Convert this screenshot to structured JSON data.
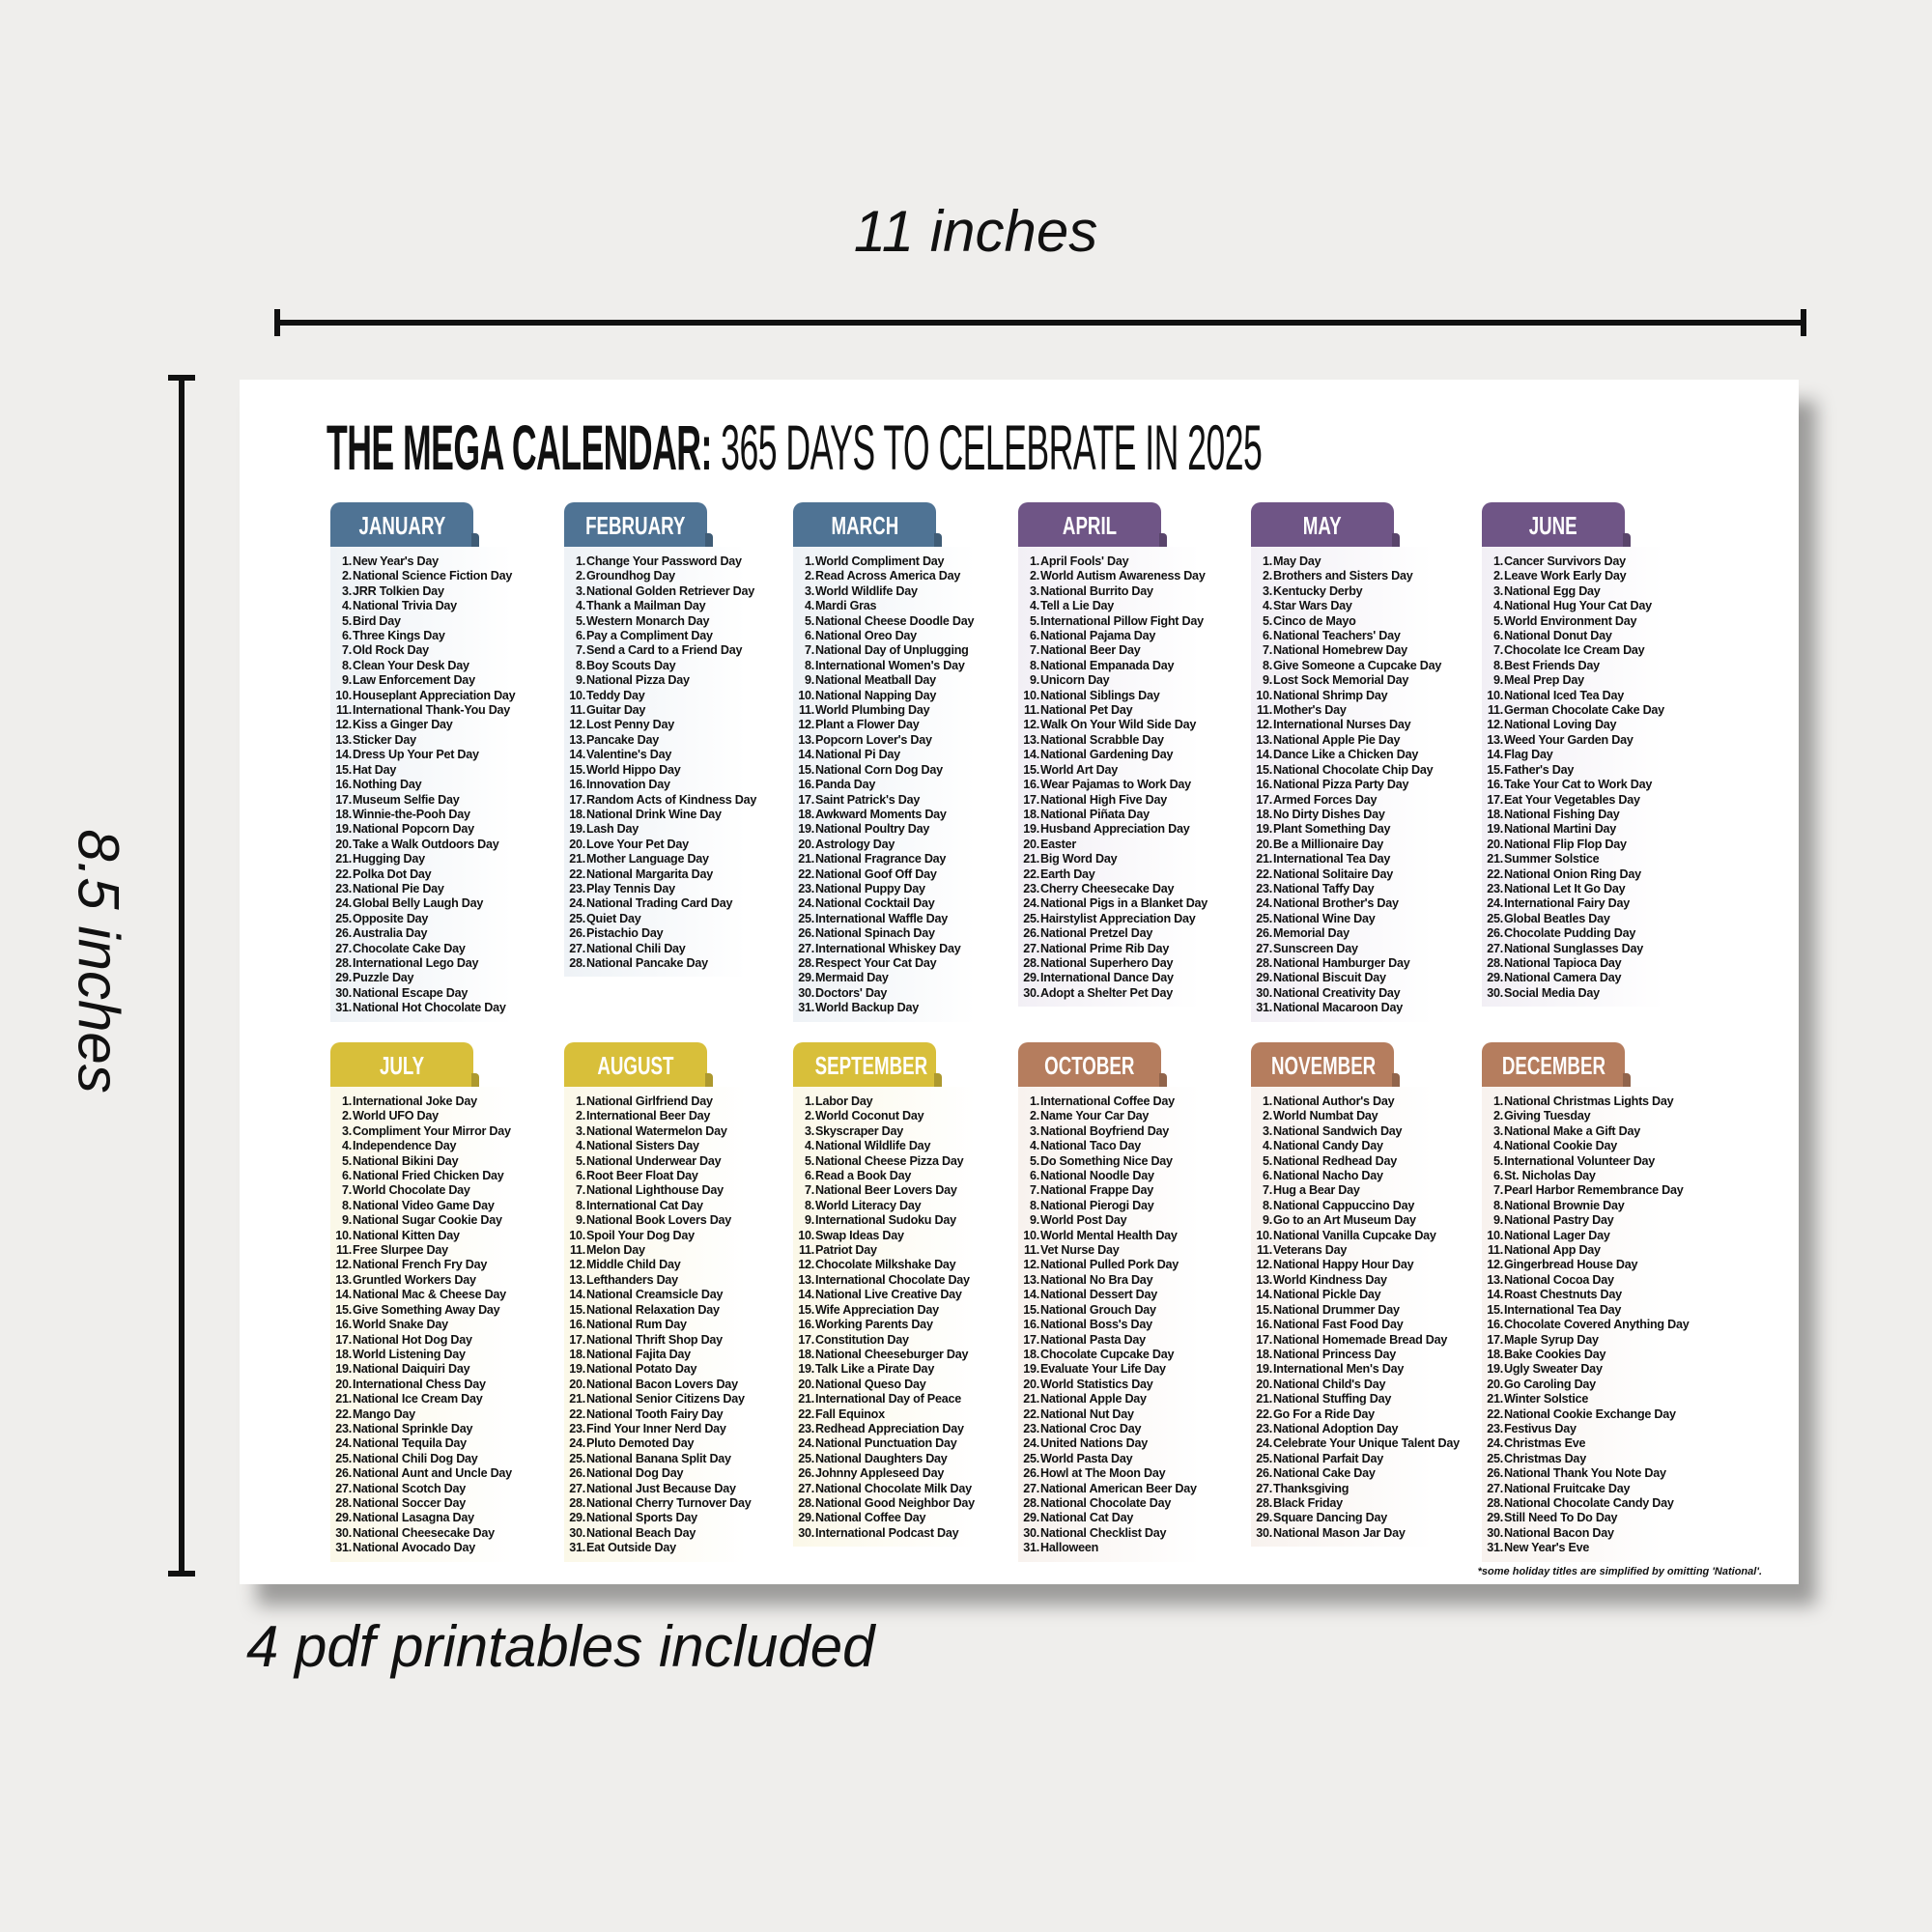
{
  "labels": {
    "width": "11 inches",
    "height": "8.5 inches",
    "printables": "4 pdf printables included"
  },
  "calendar": {
    "title_bold": "THE MEGA CALENDAR:",
    "title_rest": " 365 DAYS TO CELEBRATE IN 2025",
    "footnote": "*some holiday titles are simplified by omitting 'National'.",
    "months": [
      {
        "name": "JANUARY",
        "color": "#4f7394",
        "tint": "#eef2f6",
        "days": [
          "New Year's Day",
          "National Science Fiction Day",
          "JRR Tolkien Day",
          "National Trivia Day",
          "Bird Day",
          "Three Kings Day",
          "Old Rock Day",
          "Clean Your Desk Day",
          "Law Enforcement Day",
          "Houseplant Appreciation Day",
          "International Thank-You Day",
          "Kiss a Ginger Day",
          "Sticker Day",
          "Dress Up Your Pet Day",
          "Hat Day",
          "Nothing Day",
          "Museum Selfie Day",
          "Winnie-the-Pooh Day",
          "National Popcorn Day",
          "Take a Walk Outdoors Day",
          "Hugging Day",
          "Polka Dot Day",
          "National Pie Day",
          "Global Belly Laugh Day",
          "Opposite Day",
          "Australia Day",
          "Chocolate Cake Day",
          "International Lego Day",
          "Puzzle Day",
          "National Escape Day",
          "National Hot Chocolate Day"
        ]
      },
      {
        "name": "FEBRUARY",
        "color": "#4f7394",
        "tint": "#eef2f6",
        "days": [
          "Change Your Password Day",
          "Groundhog Day",
          "National Golden Retriever Day",
          "Thank a Mailman Day",
          "Western Monarch Day",
          "Pay a Compliment Day",
          "Send a Card to a Friend Day",
          "Boy Scouts Day",
          "National Pizza Day",
          "Teddy Day",
          "Guitar Day",
          "Lost Penny Day",
          "Pancake Day",
          "Valentine's Day",
          "World Hippo Day",
          "Innovation Day",
          "Random Acts of Kindness Day",
          "National Drink Wine Day",
          "Lash Day",
          "Love Your Pet Day",
          "Mother Language Day",
          "National Margarita Day",
          "Play Tennis Day",
          "National Trading Card Day",
          "Quiet Day",
          "Pistachio Day",
          "National Chili Day",
          "National Pancake Day"
        ]
      },
      {
        "name": "MARCH",
        "color": "#4f7394",
        "tint": "#eef2f6",
        "days": [
          "World Compliment Day",
          "Read Across America Day",
          "World Wildlife Day",
          "Mardi Gras",
          "National Cheese Doodle Day",
          "National Oreo Day",
          "National Day of Unplugging",
          "International Women's Day",
          "National Meatball Day",
          "National Napping Day",
          "World Plumbing Day",
          "Plant a Flower Day",
          "Popcorn Lover's Day",
          "National Pi Day",
          "National Corn Dog Day",
          "Panda Day",
          "Saint Patrick's Day",
          "Awkward Moments Day",
          "National Poultry Day",
          "Astrology Day",
          "National Fragrance Day",
          "National Goof Off Day",
          "National Puppy Day",
          "National Cocktail Day",
          "International Waffle Day",
          "National Spinach Day",
          "International Whiskey Day",
          "Respect Your Cat Day",
          "Mermaid Day",
          "Doctors' Day",
          "World Backup Day"
        ]
      },
      {
        "name": "APRIL",
        "color": "#6f5586",
        "tint": "#f2eff5",
        "days": [
          "April Fools' Day",
          "World Autism Awareness Day",
          "National Burrito Day",
          "Tell a Lie Day",
          "International Pillow Fight Day",
          "National Pajama Day",
          "National Beer Day",
          "National Empanada Day",
          "Unicorn Day",
          "National Siblings Day",
          "National Pet Day",
          "Walk On Your Wild Side Day",
          "National Scrabble Day",
          "National Gardening Day",
          "World Art Day",
          "Wear Pajamas to Work Day",
          "National High Five Day",
          "National Piñata Day",
          "Husband Appreciation Day",
          "Easter",
          "Big Word Day",
          "Earth Day",
          "Cherry Cheesecake Day",
          "National Pigs in a Blanket Day",
          "Hairstylist Appreciation Day",
          "National Pretzel Day",
          "National Prime Rib Day",
          "National Superhero Day",
          "International Dance Day",
          "Adopt a Shelter Pet Day"
        ]
      },
      {
        "name": "MAY",
        "color": "#6f5586",
        "tint": "#f2eff5",
        "days": [
          "May Day",
          "Brothers and Sisters Day",
          "Kentucky Derby",
          "Star Wars Day",
          "Cinco de Mayo",
          "National Teachers' Day",
          "National Homebrew Day",
          "Give Someone a Cupcake Day",
          "Lost Sock Memorial Day",
          "National Shrimp Day",
          "Mother's Day",
          "International Nurses Day",
          "National Apple Pie Day",
          "Dance Like a Chicken Day",
          "National Chocolate Chip Day",
          "National Pizza Party Day",
          "Armed Forces Day",
          "No Dirty Dishes Day",
          "Plant Something Day",
          "Be a Millionaire Day",
          "International Tea Day",
          "National Solitaire Day",
          "National Taffy Day",
          "National Brother's Day",
          "National Wine Day",
          "Memorial Day",
          "Sunscreen Day",
          "National Hamburger Day",
          "National Biscuit Day",
          "National Creativity Day",
          "National Macaroon Day"
        ]
      },
      {
        "name": "JUNE",
        "color": "#6f5586",
        "tint": "#f2eff5",
        "days": [
          "Cancer Survivors Day",
          "Leave Work Early Day",
          "National Egg Day",
          "National Hug Your Cat Day",
          "World Environment Day",
          "National Donut Day",
          "Chocolate Ice Cream Day",
          "Best Friends Day",
          "Meal Prep Day",
          "National Iced Tea Day",
          "German Chocolate Cake Day",
          "National Loving Day",
          "Weed Your Garden Day",
          "Flag Day",
          "Father's Day",
          "Take Your Cat to Work Day",
          "Eat Your Vegetables Day",
          "National Fishing Day",
          "National Martini Day",
          "National Flip Flop Day",
          "Summer Solstice",
          "National Onion Ring Day",
          "National Let It Go Day",
          "International Fairy Day",
          "Global Beatles Day",
          "Chocolate Pudding Day",
          "National Sunglasses Day",
          "National Tapioca Day",
          "National Camera Day",
          "Social Media Day"
        ]
      },
      {
        "name": "JULY",
        "color": "#d8bf3a",
        "tint": "#fbf8e8",
        "days": [
          "International Joke Day",
          "World UFO Day",
          "Compliment Your Mirror Day",
          "Independence Day",
          "National Bikini Day",
          "National Fried Chicken Day",
          "World Chocolate Day",
          "National Video Game Day",
          "National Sugar Cookie Day",
          "National Kitten Day",
          "Free Slurpee Day",
          "National French Fry Day",
          "Gruntled Workers Day",
          "National Mac & Cheese Day",
          "Give Something Away Day",
          "World Snake Day",
          "National Hot Dog Day",
          "World Listening Day",
          "National Daiquiri Day",
          "International Chess Day",
          "National Ice Cream Day",
          "Mango Day",
          "National Sprinkle Day",
          "National Tequila Day",
          "National Chili Dog Day",
          "National Aunt and Uncle Day",
          "National Scotch Day",
          "National Soccer Day",
          "National Lasagna Day",
          "National Cheesecake Day",
          "National Avocado Day"
        ]
      },
      {
        "name": "AUGUST",
        "color": "#d8bf3a",
        "tint": "#fbf8e8",
        "days": [
          "National Girlfriend Day",
          "International Beer Day",
          "National Watermelon Day",
          "National Sisters Day",
          "National Underwear Day",
          "Root Beer Float Day",
          "National Lighthouse Day",
          "International Cat Day",
          "National Book Lovers Day",
          "Spoil Your Dog Day",
          "Melon Day",
          "Middle Child Day",
          "Lefthanders Day",
          "National Creamsicle Day",
          "National Relaxation Day",
          "National Rum Day",
          "National Thrift Shop Day",
          "National Fajita Day",
          "National Potato Day",
          "National Bacon Lovers Day",
          "National Senior Citizens Day",
          "National Tooth Fairy Day",
          "Find Your Inner Nerd Day",
          "Pluto Demoted Day",
          "National Banana Split Day",
          "National Dog Day",
          "National Just Because Day",
          "National Cherry Turnover Day",
          "National Sports Day",
          "National Beach Day",
          "Eat Outside Day"
        ]
      },
      {
        "name": "SEPTEMBER",
        "color": "#d8bf3a",
        "tint": "#fbf8e8",
        "days": [
          "Labor Day",
          "World Coconut Day",
          "Skyscraper Day",
          "National Wildlife Day",
          "National Cheese Pizza Day",
          "Read a Book Day",
          "National Beer Lovers Day",
          "World Literacy Day",
          "International Sudoku Day",
          "Swap Ideas Day",
          "Patriot Day",
          "Chocolate Milkshake Day",
          "International Chocolate Day",
          "National Live Creative Day",
          "Wife Appreciation Day",
          "Working Parents Day",
          "Constitution Day",
          "National Cheeseburger Day",
          "Talk Like a Pirate Day",
          "National Queso Day",
          "International Day of Peace",
          "Fall Equinox",
          "Redhead Appreciation Day",
          "National Punctuation Day",
          "National Daughters Day",
          "Johnny Appleseed Day",
          "National Chocolate Milk Day",
          "National Good Neighbor Day",
          "National Coffee Day",
          "International Podcast Day"
        ]
      },
      {
        "name": "OCTOBER",
        "color": "#b57d5e",
        "tint": "#f8f2ee",
        "days": [
          "International Coffee Day",
          "Name Your Car Day",
          "National Boyfriend Day",
          "National Taco Day",
          "Do Something Nice Day",
          "National Noodle Day",
          "National Frappe Day",
          "National Pierogi Day",
          "World Post Day",
          "World Mental Health Day",
          "Vet Nurse Day",
          "National Pulled Pork Day",
          "National No Bra Day",
          "National Dessert Day",
          "National Grouch Day",
          "National Boss's Day",
          "National Pasta Day",
          "Chocolate Cupcake Day",
          "Evaluate Your Life Day",
          "World Statistics Day",
          "National Apple Day",
          "National Nut Day",
          "National Croc Day",
          "United Nations Day",
          "World Pasta Day",
          "Howl at The Moon Day",
          "National American Beer Day",
          "National Chocolate Day",
          "National Cat Day",
          "National Checklist Day",
          "Halloween"
        ]
      },
      {
        "name": "NOVEMBER",
        "color": "#b57d5e",
        "tint": "#f8f2ee",
        "days": [
          "National Author's Day",
          "World Numbat Day",
          "National Sandwich Day",
          "National Candy Day",
          "National Redhead Day",
          "National Nacho Day",
          "Hug a Bear Day",
          "National Cappuccino Day",
          "Go to an Art Museum Day",
          "National Vanilla Cupcake Day",
          "Veterans Day",
          "National Happy Hour Day",
          "World Kindness Day",
          "National Pickle Day",
          "National Drummer Day",
          "National Fast Food Day",
          "National Homemade Bread Day",
          "National Princess Day",
          "International Men's Day",
          "National Child's Day",
          "National Stuffing Day",
          "Go For a Ride Day",
          "National Adoption Day",
          "Celebrate Your Unique Talent Day",
          "National Parfait Day",
          "National Cake Day",
          "Thanksgiving",
          "Black Friday",
          "Square Dancing Day",
          "National Mason Jar Day"
        ]
      },
      {
        "name": "DECEMBER",
        "color": "#b57d5e",
        "tint": "#f8f2ee",
        "days": [
          "National Christmas Lights Day",
          "Giving Tuesday",
          "National Make a Gift Day",
          "National Cookie Day",
          "International Volunteer Day",
          "St. Nicholas Day",
          "Pearl Harbor Remembrance Day",
          "National Brownie Day",
          "National Pastry Day",
          "National Lager Day",
          "National App Day",
          "Gingerbread House Day",
          "National Cocoa Day",
          "Roast Chestnuts Day",
          "International Tea Day",
          "Chocolate Covered Anything Day",
          "Maple Syrup Day",
          "Bake Cookies Day",
          "Ugly Sweater Day",
          "Go Caroling Day",
          "Winter Solstice",
          "National Cookie Exchange Day",
          "Festivus Day",
          "Christmas Eve",
          "Christmas Day",
          "National Thank You Note Day",
          "National Fruitcake Day",
          "National Chocolate Candy Day",
          "Still Need To Do Day",
          "National Bacon Day",
          "New Year's Eve"
        ]
      }
    ]
  }
}
